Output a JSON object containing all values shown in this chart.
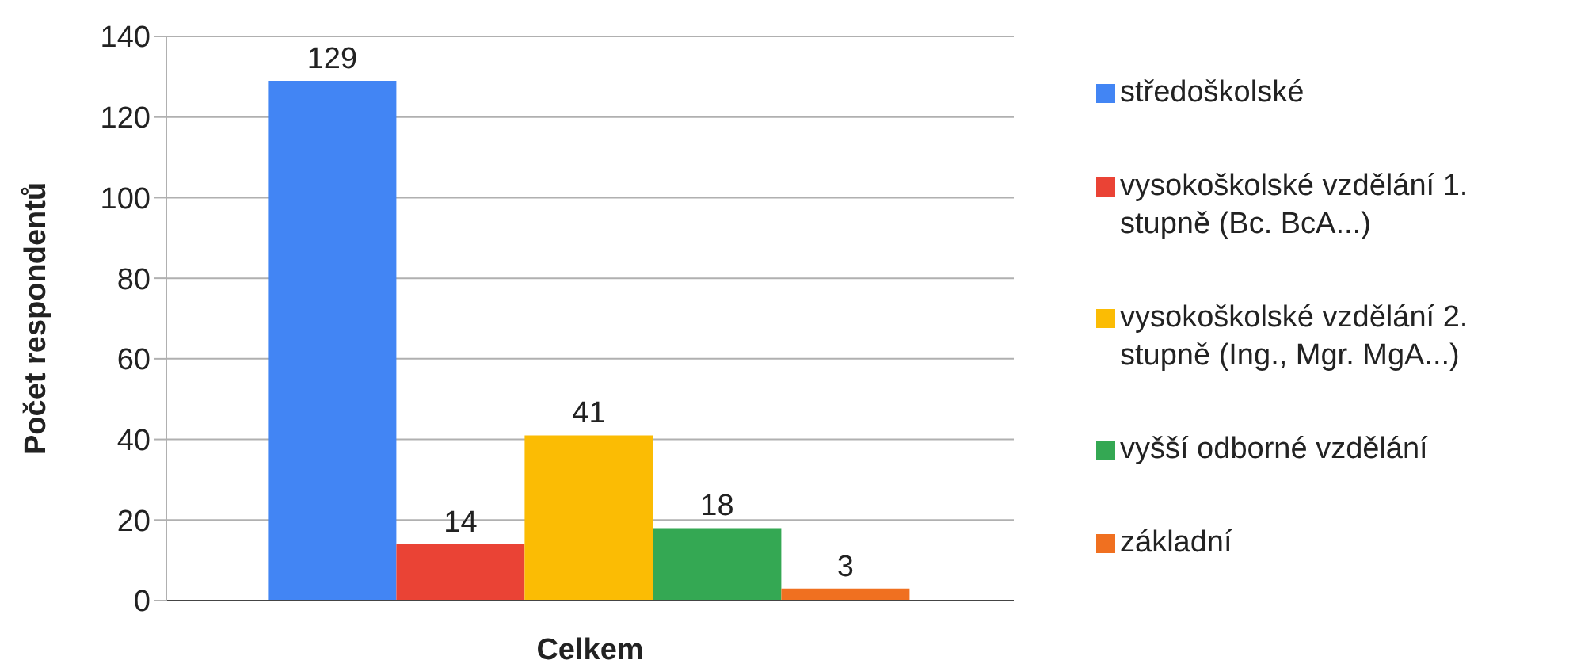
{
  "chart_data": {
    "type": "bar",
    "xlabel": "Celkem",
    "ylabel": "Počet respondentů",
    "categories": [
      null
    ],
    "series": [
      {
        "name": "středoškolské",
        "color": "#4285f4",
        "values": [
          129
        ]
      },
      {
        "name": "vysokoškolské vzdělání 1. stupně (Bc. BcA...)",
        "color": "#ea4335",
        "values": [
          14
        ]
      },
      {
        "name": "vysokoškolské vzdělání 2. stupně (Ing., Mgr. MgA...)",
        "color": "#fbbc04",
        "values": [
          41
        ]
      },
      {
        "name": "vyšší odborné vzdělání",
        "color": "#34a853",
        "values": [
          18
        ]
      },
      {
        "name": "základní",
        "color": "#f07020",
        "values": [
          3
        ]
      }
    ],
    "ylim": [
      0,
      140
    ],
    "yticks": [
      0,
      20,
      40,
      60,
      80,
      100,
      120,
      140
    ],
    "grid": "y",
    "legend": "right",
    "data_labels": true
  }
}
